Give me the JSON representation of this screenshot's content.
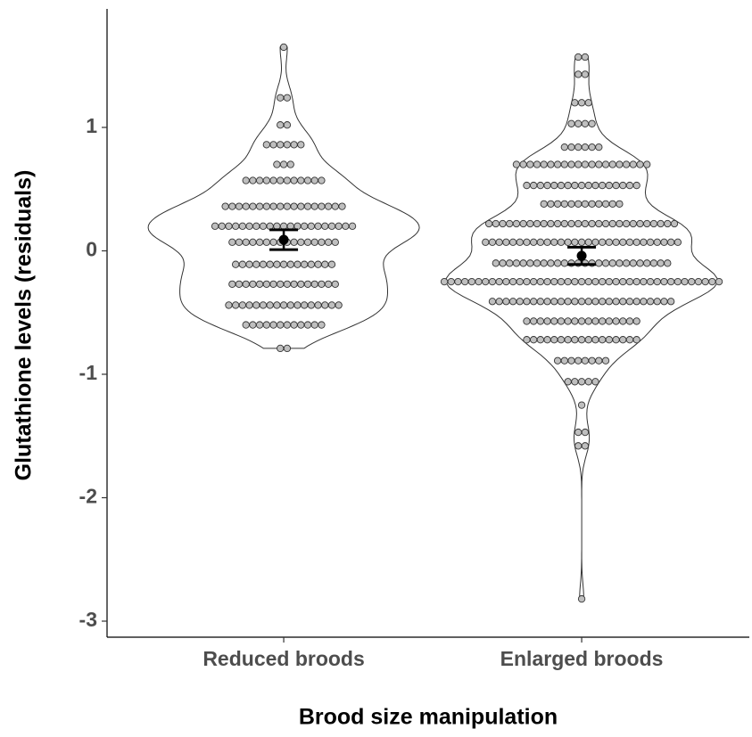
{
  "chart_data": {
    "type": "violin",
    "x_label": "Brood size manipulation",
    "y_label": "Glutathione levels (residuals)",
    "ylim": [
      -3.13,
      1.96
    ],
    "yticks": [
      -3,
      -2,
      -1,
      0,
      1
    ],
    "dot_color": "#bfbfbf",
    "groups": [
      {
        "name": "Reduced broods",
        "mean": 0.09,
        "se": 0.08,
        "rows": [
          {
            "y": 1.65,
            "count": 1
          },
          {
            "y": 1.24,
            "count": 2
          },
          {
            "y": 1.02,
            "count": 2
          },
          {
            "y": 0.86,
            "count": 6
          },
          {
            "y": 0.7,
            "count": 3
          },
          {
            "y": 0.57,
            "count": 12
          },
          {
            "y": 0.36,
            "count": 18
          },
          {
            "y": 0.2,
            "count": 21
          },
          {
            "y": 0.07,
            "count": 16
          },
          {
            "y": -0.11,
            "count": 15
          },
          {
            "y": -0.27,
            "count": 16
          },
          {
            "y": -0.44,
            "count": 17
          },
          {
            "y": -0.6,
            "count": 12
          },
          {
            "y": -0.79,
            "count": 2
          }
        ]
      },
      {
        "name": "Enlarged broods",
        "mean": -0.04,
        "se": 0.07,
        "rows": [
          {
            "y": 1.57,
            "count": 2
          },
          {
            "y": 1.43,
            "count": 2
          },
          {
            "y": 1.2,
            "count": 3
          },
          {
            "y": 1.03,
            "count": 4
          },
          {
            "y": 0.84,
            "count": 6
          },
          {
            "y": 0.7,
            "count": 20
          },
          {
            "y": 0.53,
            "count": 17
          },
          {
            "y": 0.38,
            "count": 12
          },
          {
            "y": 0.22,
            "count": 28
          },
          {
            "y": 0.07,
            "count": 29
          },
          {
            "y": -0.1,
            "count": 26
          },
          {
            "y": -0.25,
            "count": 41
          },
          {
            "y": -0.41,
            "count": 27
          },
          {
            "y": -0.57,
            "count": 17
          },
          {
            "y": -0.72,
            "count": 17
          },
          {
            "y": -0.89,
            "count": 8
          },
          {
            "y": -1.06,
            "count": 5
          },
          {
            "y": -1.25,
            "count": 1
          },
          {
            "y": -1.47,
            "count": 2
          },
          {
            "y": -1.58,
            "count": 2
          },
          {
            "y": -2.82,
            "count": 1
          }
        ]
      }
    ]
  }
}
